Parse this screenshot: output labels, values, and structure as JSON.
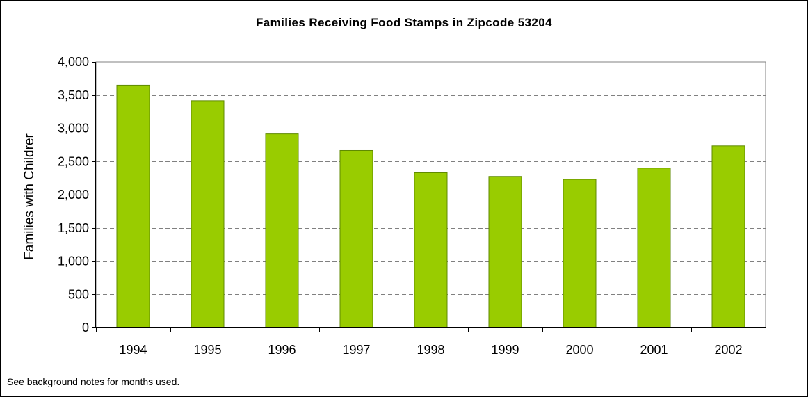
{
  "chart_data": {
    "type": "bar",
    "title": "Families Receiving Food Stamps in Zipcode 53204",
    "xlabel": "",
    "ylabel": "Families with Children",
    "ylabel_display": "Families with Childrer",
    "categories": [
      "1994",
      "1995",
      "1996",
      "1997",
      "1998",
      "1999",
      "2000",
      "2001",
      "2002"
    ],
    "values": [
      3650,
      3415,
      2915,
      2665,
      2330,
      2275,
      2230,
      2400,
      2735
    ],
    "ylim": [
      0,
      4000
    ],
    "yticks": [
      0,
      500,
      1000,
      1500,
      2000,
      2500,
      3000,
      3500,
      4000
    ],
    "ytick_labels": [
      "0",
      "500",
      "1,000",
      "1,500",
      "2,000",
      "2,500",
      "3,000",
      "3,500",
      "4,000"
    ],
    "grid": "horizontal dashed",
    "legend": "none",
    "bar_color": "#99CC00",
    "bar_border_color": "#5F8A00"
  },
  "footnote": "See background notes for months used."
}
